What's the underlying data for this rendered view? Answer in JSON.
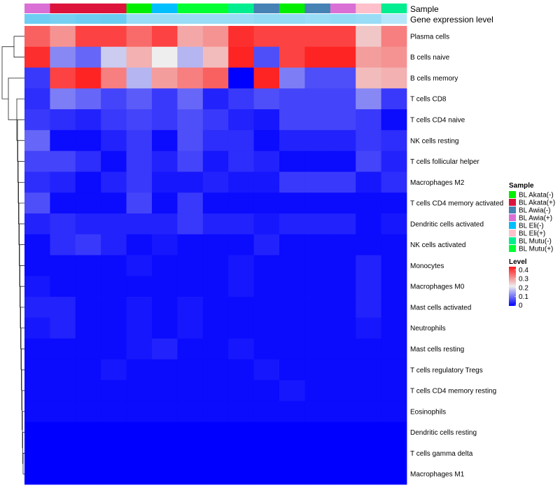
{
  "chart_data": {
    "type": "heatmap",
    "annotation_labels": {
      "sample": "Sample",
      "expression": "Gene expression level"
    },
    "rows": [
      "Plasma cells",
      "B cells naive",
      "B cells memory",
      "T cells CD8",
      "T cells CD4 naive",
      "NK cells resting",
      "T cells follicular helper",
      "Macrophages M2",
      "T cells CD4 memory activated",
      "Dendritic cells activated",
      "NK cells activated",
      "Monocytes",
      "Macrophages M0",
      "Mast cells activated",
      "Neutrophils",
      "Mast cells resting",
      "T cells regulatory  Tregs",
      "T cells CD4 memory resting",
      "Eosinophils",
      "Dendritic cells resting",
      "T cells gamma delta",
      "Macrophages M1"
    ],
    "columns_sample": [
      "BL Awia(+)",
      "BL Akata(+)",
      "BL Akata(+)",
      "BL Akata(+)",
      "BL Akata(-)",
      "BL Eli(-)",
      "BL Mutu(+)",
      "BL Mutu(+)",
      "BL Mutu(-)",
      "BL Awia(-)",
      "BL Akata(-)",
      "BL Awia(-)",
      "BL Awia(+)",
      "BL Eli(+)",
      "BL Mutu(-)"
    ],
    "columns_expression": [
      0.45,
      0.42,
      0.45,
      0.46,
      0.3,
      0.3,
      0.3,
      0.3,
      0.3,
      0.32,
      0.32,
      0.3,
      0.32,
      0.3,
      0.2
    ],
    "values": [
      [
        0.35,
        0.3,
        0.38,
        0.38,
        0.34,
        0.38,
        0.28,
        0.3,
        0.4,
        0.38,
        0.38,
        0.38,
        0.38,
        0.25,
        0.32
      ],
      [
        0.4,
        0.12,
        0.09,
        0.18,
        0.27,
        0.21,
        0.16,
        0.26,
        0.41,
        0.07,
        0.38,
        0.41,
        0.41,
        0.29,
        0.3
      ],
      [
        0.05,
        0.38,
        0.41,
        0.32,
        0.16,
        0.29,
        0.32,
        0.35,
        0.0,
        0.41,
        0.11,
        0.07,
        0.07,
        0.26,
        0.27
      ],
      [
        0.04,
        0.11,
        0.09,
        0.06,
        0.08,
        0.05,
        0.09,
        0.03,
        0.05,
        0.07,
        0.06,
        0.06,
        0.06,
        0.12,
        0.05
      ],
      [
        0.05,
        0.04,
        0.03,
        0.05,
        0.06,
        0.05,
        0.07,
        0.05,
        0.03,
        0.02,
        0.06,
        0.06,
        0.06,
        0.05,
        0.01
      ],
      [
        0.09,
        0.01,
        0.01,
        0.03,
        0.05,
        0.01,
        0.07,
        0.04,
        0.04,
        0.01,
        0.03,
        0.03,
        0.03,
        0.05,
        0.04
      ],
      [
        0.06,
        0.06,
        0.04,
        0.01,
        0.05,
        0.03,
        0.06,
        0.02,
        0.04,
        0.03,
        0.01,
        0.01,
        0.01,
        0.06,
        0.03
      ],
      [
        0.04,
        0.03,
        0.01,
        0.03,
        0.05,
        0.02,
        0.02,
        0.03,
        0.02,
        0.02,
        0.05,
        0.05,
        0.05,
        0.02,
        0.04
      ],
      [
        0.07,
        0.01,
        0.01,
        0.01,
        0.06,
        0.01,
        0.05,
        0.01,
        0.01,
        0.01,
        0.01,
        0.01,
        0.01,
        0.01,
        0.01
      ],
      [
        0.03,
        0.04,
        0.03,
        0.03,
        0.03,
        0.03,
        0.05,
        0.03,
        0.03,
        0.02,
        0.03,
        0.03,
        0.03,
        0.01,
        0.02
      ],
      [
        0.01,
        0.04,
        0.05,
        0.03,
        0.01,
        0.02,
        0.01,
        0.01,
        0.01,
        0.03,
        0.01,
        0.01,
        0.01,
        0.01,
        0.01
      ],
      [
        0.01,
        0.01,
        0.01,
        0.01,
        0.02,
        0.01,
        0.01,
        0.01,
        0.02,
        0.01,
        0.01,
        0.01,
        0.01,
        0.03,
        0.01
      ],
      [
        0.02,
        0.01,
        0.01,
        0.01,
        0.01,
        0.01,
        0.01,
        0.01,
        0.02,
        0.01,
        0.01,
        0.01,
        0.01,
        0.03,
        0.01
      ],
      [
        0.03,
        0.03,
        0.01,
        0.01,
        0.02,
        0.01,
        0.02,
        0.01,
        0.01,
        0.01,
        0.01,
        0.01,
        0.01,
        0.03,
        0.01
      ],
      [
        0.02,
        0.03,
        0.01,
        0.01,
        0.02,
        0.01,
        0.02,
        0.01,
        0.01,
        0.01,
        0.01,
        0.01,
        0.01,
        0.02,
        0.01
      ],
      [
        0.01,
        0.01,
        0.01,
        0.01,
        0.02,
        0.03,
        0.01,
        0.01,
        0.02,
        0.01,
        0.01,
        0.01,
        0.01,
        0.01,
        0.01
      ],
      [
        0.01,
        0.01,
        0.01,
        0.02,
        0.01,
        0.01,
        0.01,
        0.01,
        0.01,
        0.02,
        0.01,
        0.01,
        0.01,
        0.01,
        0.01
      ],
      [
        0.01,
        0.01,
        0.01,
        0.01,
        0.01,
        0.01,
        0.01,
        0.01,
        0.01,
        0.01,
        0.02,
        0.01,
        0.01,
        0.01,
        0.01
      ],
      [
        0.01,
        0.01,
        0.01,
        0.01,
        0.01,
        0.01,
        0.01,
        0.01,
        0.01,
        0.01,
        0.01,
        0.01,
        0.01,
        0.01,
        0.01
      ],
      [
        0.0,
        0.0,
        0.0,
        0.0,
        0.0,
        0.0,
        0.0,
        0.0,
        0.0,
        0.0,
        0.0,
        0.0,
        0.0,
        0.0,
        0.0
      ],
      [
        0.0,
        0.0,
        0.0,
        0.0,
        0.0,
        0.0,
        0.0,
        0.0,
        0.0,
        0.0,
        0.0,
        0.0,
        0.0,
        0.0,
        0.0
      ],
      [
        0.0,
        0.0,
        0.0,
        0.0,
        0.0,
        0.0,
        0.0,
        0.0,
        0.0,
        0.0,
        0.0,
        0.0,
        0.0,
        0.0,
        0.0
      ]
    ],
    "color_scale": {
      "min": 0,
      "max": 0.42,
      "low": "#0000ff",
      "mid": "#eeeeee",
      "high": "#ff1a1a"
    },
    "legend": {
      "sample_title": "Sample",
      "sample_entries": [
        {
          "label": "BL Akata(-)",
          "color": "#00ee00"
        },
        {
          "label": "BL Akata(+)",
          "color": "#dc143c"
        },
        {
          "label": "BL Awia(-)",
          "color": "#4682b4"
        },
        {
          "label": "BL Awia(+)",
          "color": "#da70d6"
        },
        {
          "label": "BL Eli(-)",
          "color": "#00bfff"
        },
        {
          "label": "BL Eli(+)",
          "color": "#ffc0cb"
        },
        {
          "label": "BL Mutu(-)",
          "color": "#00ee90"
        },
        {
          "label": "BL Mutu(+)",
          "color": "#00ff33"
        }
      ],
      "level_title": "Level",
      "level_ticks": [
        "0.4",
        "0.3",
        "0.2",
        "0.1",
        "0"
      ],
      "placement": "right"
    },
    "dendrogram": "rows"
  }
}
